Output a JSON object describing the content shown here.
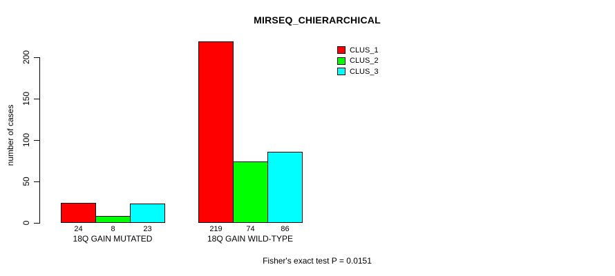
{
  "chart_data": {
    "type": "bar",
    "title": "MIRSEQ_CHIERARCHICAL",
    "ylabel": "number of cases",
    "xlabel": "",
    "categories": [
      "18Q GAIN MUTATED",
      "18Q GAIN WILD-TYPE"
    ],
    "series": [
      {
        "name": "CLUS_1",
        "color": "#ff0000",
        "values": [
          24,
          219
        ]
      },
      {
        "name": "CLUS_2",
        "color": "#00ff00",
        "values": [
          8,
          74
        ]
      },
      {
        "name": "CLUS_3",
        "color": "#00ffff",
        "values": [
          23,
          86
        ]
      }
    ],
    "show_bar_values": true,
    "yticks": [
      0,
      50,
      100,
      150,
      200
    ],
    "ylim": [
      0,
      220
    ],
    "grid": false,
    "legend_position": "top-right",
    "bar_border_color": "#000000",
    "background_color": "#ffffff",
    "annotation": "Fisher's exact test P = 0.0151"
  }
}
